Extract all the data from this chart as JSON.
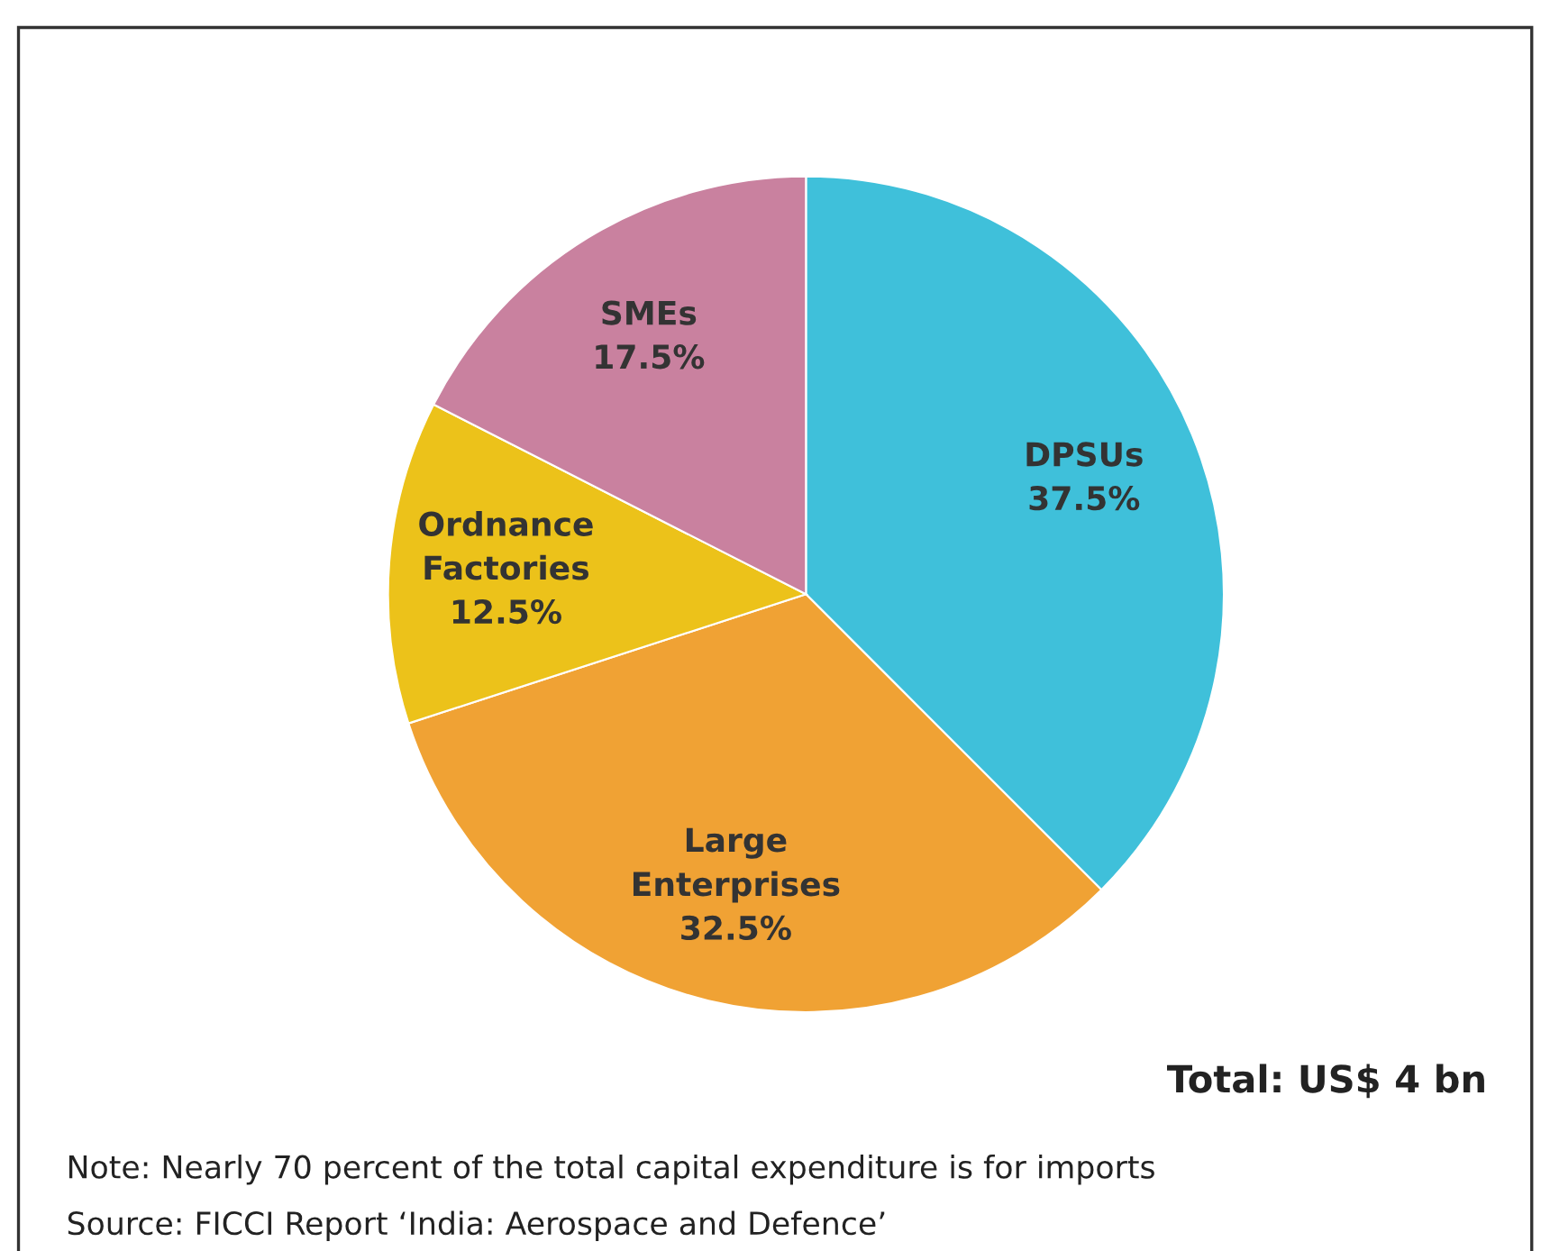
{
  "chart_data": {
    "type": "pie",
    "categories": [
      "DPSUs",
      "Large\nEnterprises",
      "Ordnance\nFactories",
      "SMEs"
    ],
    "values": [
      37.5,
      32.5,
      12.5,
      17.5
    ],
    "colors": [
      "#3fc0da",
      "#f0a234",
      "#ecc21a",
      "#c9819f"
    ],
    "value_labels": [
      "37.5%",
      "32.5%",
      "12.5%",
      "17.5%"
    ],
    "annotations": [
      "Total: US$ 4 bn",
      "Note: Nearly 70 percent of the total capital expenditure is for imports",
      "Source: FICCI Report ‘India: Aerospace and Defence’"
    ]
  }
}
